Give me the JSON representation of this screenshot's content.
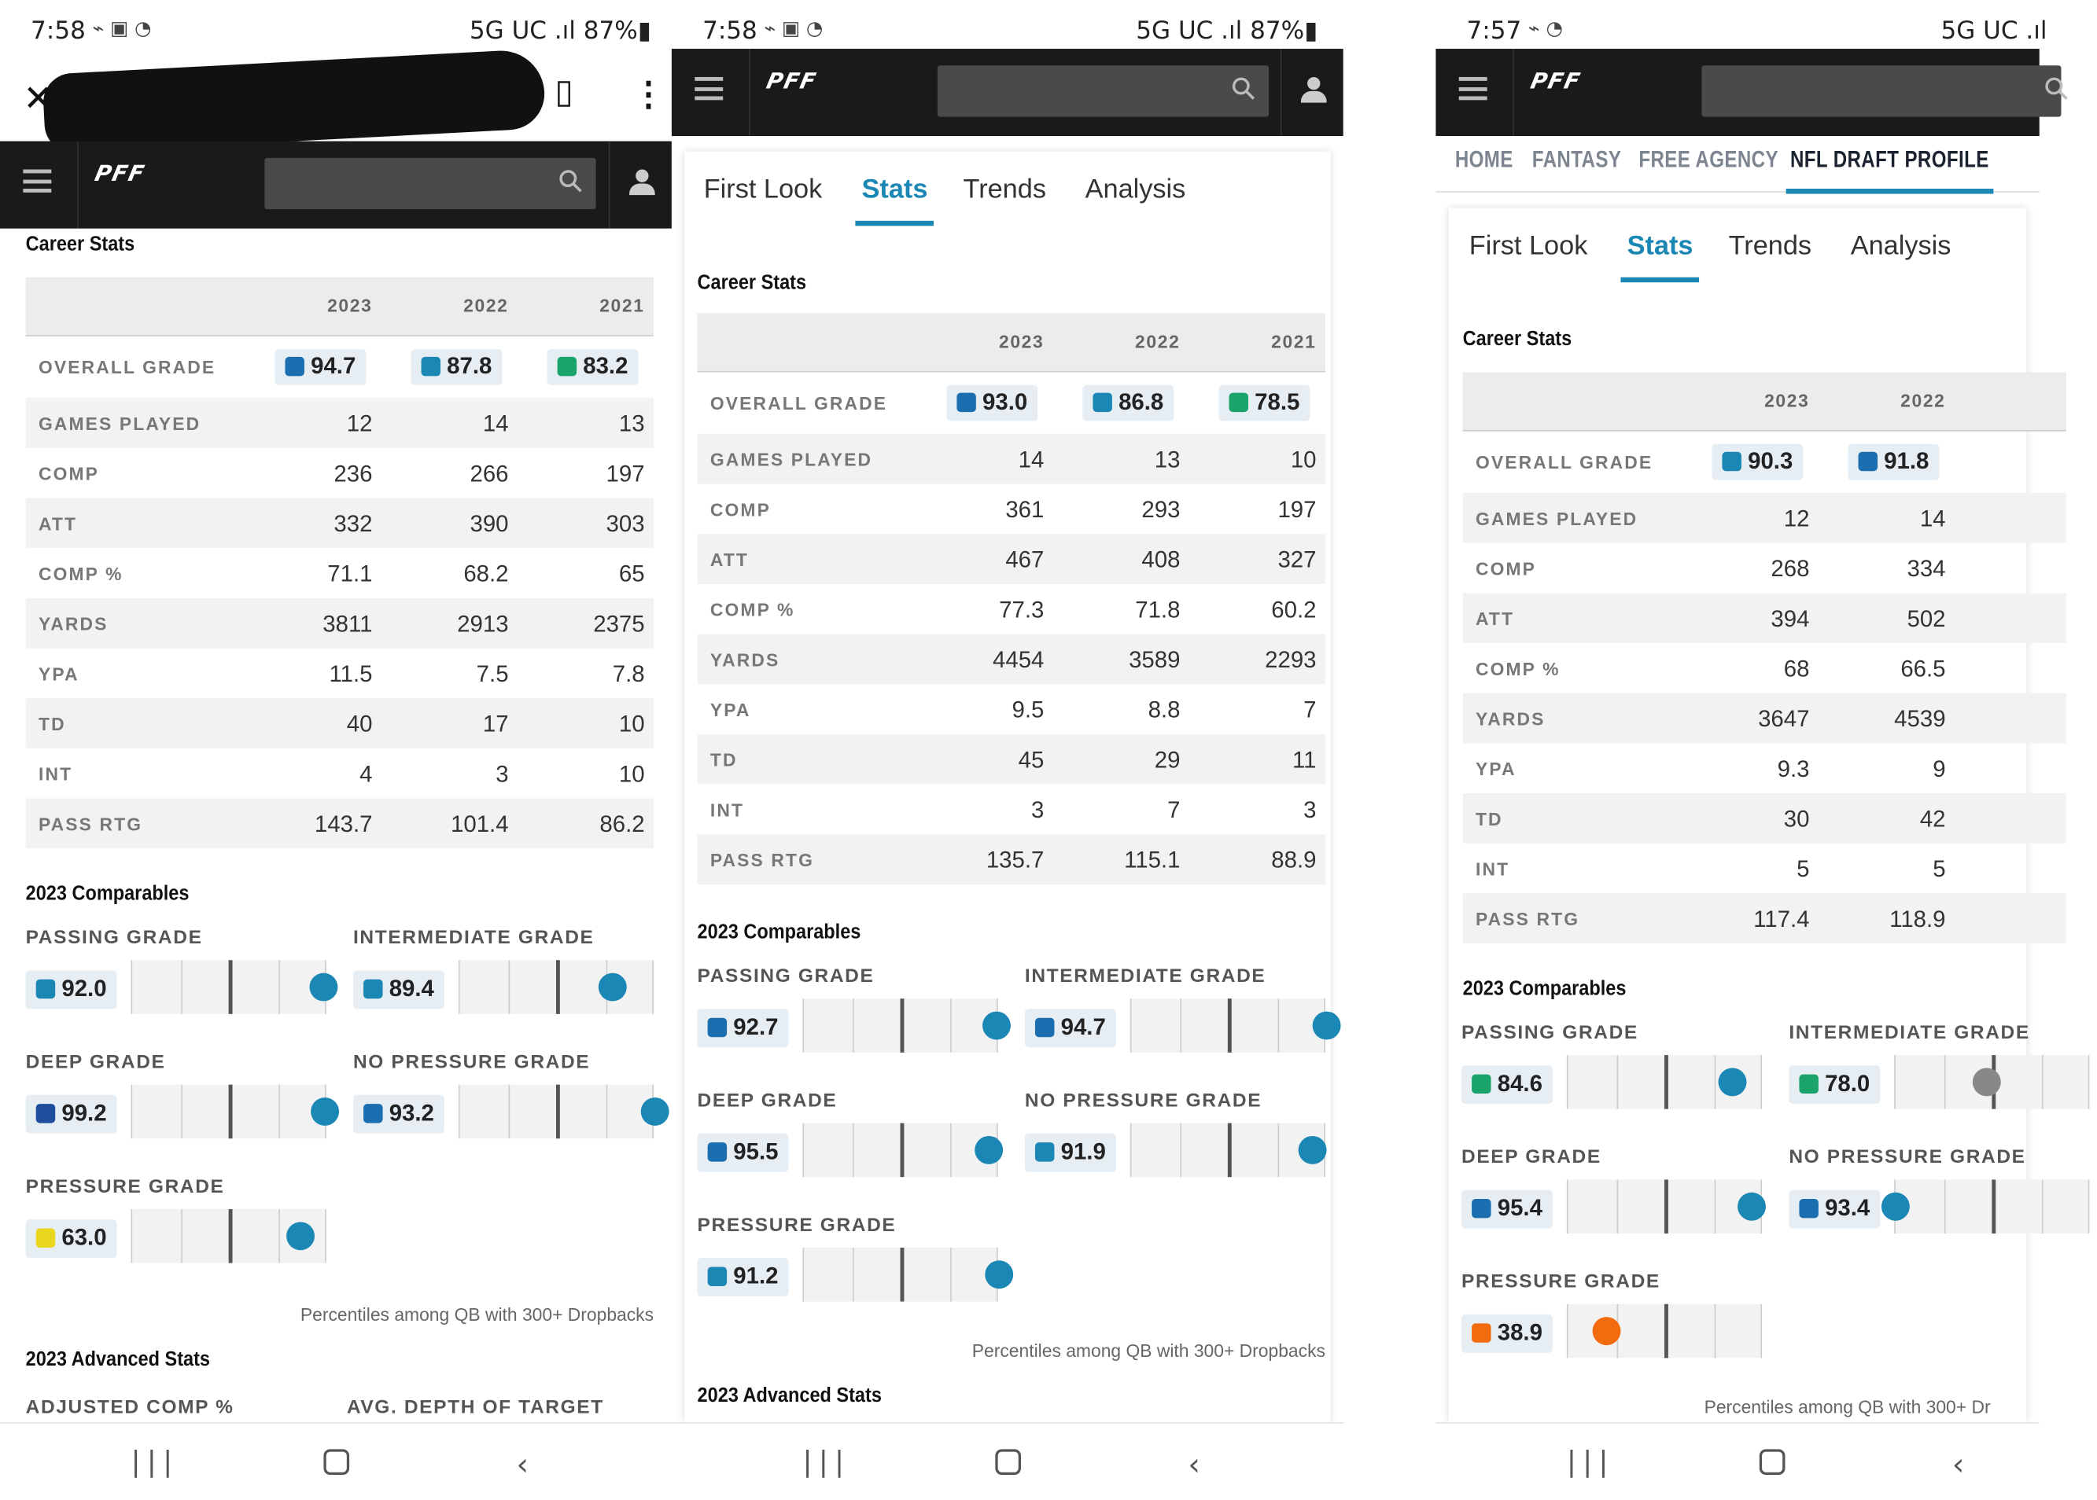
{
  "colors": {
    "accent": "#1b87b5",
    "dark": "#1a1a1a",
    "blue_dark": "#1f4e9c",
    "blue": "#1b6fb0",
    "teal": "#1b87b5",
    "green": "#1aa36b",
    "yellow": "#e8d71d",
    "orange": "#f26b0f",
    "gray": "#888888"
  },
  "icons": {
    "close": "close-icon",
    "bookmark": "bookmark-icon",
    "more": "more-vert-icon",
    "menu": "menu-icon",
    "search": "search-icon",
    "account": "account-icon",
    "recents": "recents-icon",
    "home": "home-icon",
    "back": "back-icon"
  },
  "panels": [
    {
      "status": {
        "time": "7:58",
        "network": "5G UC .ıl 87%▮"
      },
      "logo": "PFF",
      "tabs": [],
      "career_title": "Career Stats",
      "years": [
        "2023",
        "2022",
        "2021"
      ],
      "overall": {
        "label": "OVERALL GRADE",
        "values": [
          "94.7",
          "87.8",
          "83.2"
        ]
      },
      "rows": [
        {
          "label": "GAMES PLAYED",
          "values": [
            "12",
            "14",
            "13"
          ]
        },
        {
          "label": "COMP",
          "values": [
            "236",
            "266",
            "197"
          ]
        },
        {
          "label": "ATT",
          "values": [
            "332",
            "390",
            "303"
          ]
        },
        {
          "label": "COMP %",
          "values": [
            "71.1",
            "68.2",
            "65"
          ]
        },
        {
          "label": "YARDS",
          "values": [
            "3811",
            "2913",
            "2375"
          ]
        },
        {
          "label": "YPA",
          "values": [
            "11.5",
            "7.5",
            "7.8"
          ]
        },
        {
          "label": "TD",
          "values": [
            "40",
            "17",
            "10"
          ]
        },
        {
          "label": "INT",
          "values": [
            "4",
            "3",
            "10"
          ]
        },
        {
          "label": "PASS RTG",
          "values": [
            "143.7",
            "101.4",
            "86.2"
          ]
        }
      ],
      "comparables_title": "2023 Comparables",
      "comparables": [
        {
          "label": "PASSING GRADE",
          "value": "92.0",
          "percentile": 0.98
        },
        {
          "label": "INTERMEDIATE GRADE",
          "value": "89.4",
          "percentile": 0.78
        },
        {
          "label": "DEEP GRADE",
          "value": "99.2",
          "percentile": 0.99
        },
        {
          "label": "NO PRESSURE GRADE",
          "value": "93.2",
          "percentile": 1.0
        },
        {
          "label": "PRESSURE GRADE",
          "value": "63.0",
          "percentile": 0.86
        }
      ],
      "footnote": "Percentiles among QB with 300+ Dropbacks",
      "advanced_title": "2023 Advanced Stats",
      "advanced": [
        "ADJUSTED COMP %",
        "AVG. DEPTH OF TARGET"
      ]
    },
    {
      "status": {
        "time": "7:58",
        "network": "5G UC .ıl 87%▮"
      },
      "logo": "PFF",
      "tabs": [
        "First Look",
        "Stats",
        "Trends",
        "Analysis"
      ],
      "career_title": "Career Stats",
      "years": [
        "2023",
        "2022",
        "2021"
      ],
      "overall": {
        "label": "OVERALL GRADE",
        "values": [
          "93.0",
          "86.8",
          "78.5"
        ]
      },
      "rows": [
        {
          "label": "GAMES PLAYED",
          "values": [
            "14",
            "13",
            "10"
          ]
        },
        {
          "label": "COMP",
          "values": [
            "361",
            "293",
            "197"
          ]
        },
        {
          "label": "ATT",
          "values": [
            "467",
            "408",
            "327"
          ]
        },
        {
          "label": "COMP %",
          "values": [
            "77.3",
            "71.8",
            "60.2"
          ]
        },
        {
          "label": "YARDS",
          "values": [
            "4454",
            "3589",
            "2293"
          ]
        },
        {
          "label": "YPA",
          "values": [
            "9.5",
            "8.8",
            "7"
          ]
        },
        {
          "label": "TD",
          "values": [
            "45",
            "29",
            "11"
          ]
        },
        {
          "label": "INT",
          "values": [
            "3",
            "7",
            "3"
          ]
        },
        {
          "label": "PASS RTG",
          "values": [
            "135.7",
            "115.1",
            "88.9"
          ]
        }
      ],
      "comparables_title": "2023 Comparables",
      "comparables": [
        {
          "label": "PASSING GRADE",
          "value": "92.7",
          "percentile": 0.99
        },
        {
          "label": "INTERMEDIATE GRADE",
          "value": "94.7",
          "percentile": 1.0
        },
        {
          "label": "DEEP GRADE",
          "value": "95.5",
          "percentile": 0.95
        },
        {
          "label": "NO PRESSURE GRADE",
          "value": "91.9",
          "percentile": 0.93
        },
        {
          "label": "PRESSURE GRADE",
          "value": "91.2",
          "percentile": 1.0
        }
      ],
      "footnote": "Percentiles among QB with 300+ Dropbacks",
      "advanced_title": "2023 Advanced Stats",
      "advanced": []
    },
    {
      "status": {
        "time": "7:57",
        "network": "5G UC .ıl"
      },
      "logo": "PFF",
      "toptabs": [
        "HOME",
        "FANTASY",
        "FREE AGENCY",
        "NFL DRAFT PROFILE"
      ],
      "tabs": [
        "First Look",
        "Stats",
        "Trends",
        "Analysis"
      ],
      "career_title": "Career Stats",
      "years": [
        "2023",
        "2022"
      ],
      "overall": {
        "label": "OVERALL GRADE",
        "values": [
          "90.3",
          "91.8"
        ]
      },
      "rows": [
        {
          "label": "GAMES PLAYED",
          "values": [
            "12",
            "14"
          ]
        },
        {
          "label": "COMP",
          "values": [
            "268",
            "334"
          ]
        },
        {
          "label": "ATT",
          "values": [
            "394",
            "502"
          ]
        },
        {
          "label": "COMP %",
          "values": [
            "68",
            "66.5"
          ]
        },
        {
          "label": "YARDS",
          "values": [
            "3647",
            "4539"
          ]
        },
        {
          "label": "YPA",
          "values": [
            "9.3",
            "9"
          ]
        },
        {
          "label": "TD",
          "values": [
            "30",
            "42"
          ]
        },
        {
          "label": "INT",
          "values": [
            "5",
            "5"
          ]
        },
        {
          "label": "PASS RTG",
          "values": [
            "117.4",
            "118.9"
          ]
        }
      ],
      "comparables_title": "2023 Comparables",
      "comparables": [
        {
          "label": "PASSING GRADE",
          "value": "84.6",
          "percentile": 0.84
        },
        {
          "label": "INTERMEDIATE GRADE",
          "value": "78.0",
          "percentile": 0.47
        },
        {
          "label": "DEEP GRADE",
          "value": "95.4",
          "percentile": 0.94
        },
        {
          "label": "NO PRESSURE GRADE",
          "value": "93.4",
          "percentile": 0.0
        },
        {
          "label": "PRESSURE GRADE",
          "value": "38.9",
          "percentile": 0.2
        }
      ],
      "footnote": "Percentiles among QB with 300+ Dr",
      "advanced_title": "",
      "advanced": []
    }
  ]
}
